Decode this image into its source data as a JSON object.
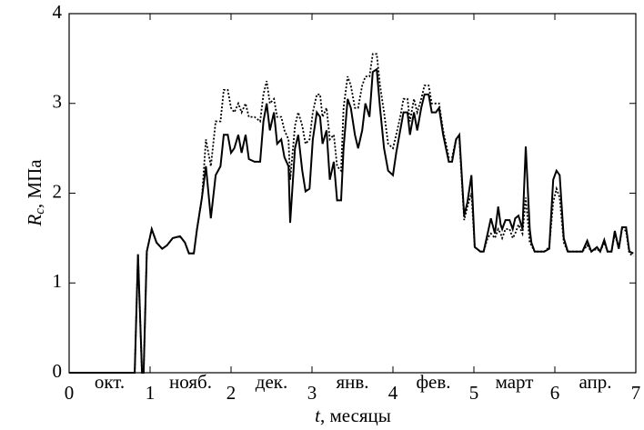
{
  "chart_data": {
    "type": "line",
    "y_label_symbol": "R",
    "y_label_subscript": "c",
    "y_label_rest": ", МПа",
    "x_label_symbol": "t",
    "x_label_rest": ", месяцы",
    "month_labels": [
      "окт.",
      "нояб.",
      "дек.",
      "янв.",
      "фев.",
      "март",
      "апр."
    ],
    "xlim": [
      0,
      7
    ],
    "xticks": [
      0,
      1,
      2,
      3,
      4,
      5,
      6,
      7
    ],
    "ylim": [
      0,
      4
    ],
    "yticks": [
      0,
      1,
      2,
      3,
      4
    ],
    "x": [
      0,
      0.81,
      0.85,
      0.9,
      0.92,
      0.96,
      1.02,
      1.08,
      1.15,
      1.21,
      1.28,
      1.37,
      1.43,
      1.48,
      1.54,
      1.58,
      1.64,
      1.69,
      1.75,
      1.81,
      1.87,
      1.91,
      1.96,
      2.0,
      2.04,
      2.09,
      2.13,
      2.18,
      2.22,
      2.29,
      2.36,
      2.4,
      2.44,
      2.48,
      2.53,
      2.57,
      2.62,
      2.66,
      2.71,
      2.73,
      2.79,
      2.83,
      2.88,
      2.92,
      2.97,
      3.01,
      3.06,
      3.1,
      3.13,
      3.18,
      3.22,
      3.27,
      3.31,
      3.36,
      3.39,
      3.44,
      3.48,
      3.53,
      3.57,
      3.62,
      3.66,
      3.71,
      3.75,
      3.8,
      3.84,
      3.89,
      3.94,
      4.0,
      4.04,
      4.09,
      4.13,
      4.18,
      4.21,
      4.26,
      4.3,
      4.35,
      4.39,
      4.44,
      4.48,
      4.53,
      4.57,
      4.62,
      4.69,
      4.73,
      4.78,
      4.82,
      4.88,
      4.92,
      4.97,
      5.01,
      5.08,
      5.12,
      5.17,
      5.21,
      5.26,
      5.3,
      5.33,
      5.35,
      5.39,
      5.44,
      5.48,
      5.51,
      5.55,
      5.6,
      5.64,
      5.69,
      5.71,
      5.75,
      5.82,
      5.87,
      5.93,
      5.98,
      6.02,
      6.06,
      6.11,
      6.16,
      6.22,
      6.34,
      6.4,
      6.45,
      6.52,
      6.56,
      6.61,
      6.65,
      6.7,
      6.74,
      6.79,
      6.83,
      6.88,
      6.92,
      6.97
    ],
    "series": [
      {
        "color": "#000000",
        "dash": "solid",
        "values": [
          0,
          0,
          1.32,
          0,
          0,
          1.35,
          1.6,
          1.45,
          1.38,
          1.42,
          1.5,
          1.52,
          1.45,
          1.33,
          1.33,
          1.6,
          1.95,
          2.3,
          1.72,
          2.2,
          2.3,
          2.65,
          2.65,
          2.45,
          2.5,
          2.65,
          2.45,
          2.65,
          2.38,
          2.35,
          2.35,
          2.8,
          3.0,
          2.7,
          2.9,
          2.55,
          2.6,
          2.4,
          2.3,
          1.67,
          2.5,
          2.65,
          2.25,
          2.02,
          2.05,
          2.6,
          2.9,
          2.85,
          2.55,
          2.7,
          2.15,
          2.35,
          1.92,
          1.92,
          2.5,
          3.05,
          2.95,
          2.65,
          2.5,
          2.7,
          3.0,
          2.85,
          3.35,
          3.38,
          2.95,
          2.5,
          2.25,
          2.2,
          2.45,
          2.7,
          2.9,
          2.9,
          2.65,
          2.9,
          2.7,
          2.95,
          3.1,
          3.1,
          2.9,
          2.9,
          2.95,
          2.65,
          2.35,
          2.35,
          2.6,
          2.65,
          1.75,
          1.9,
          2.2,
          1.4,
          1.35,
          1.35,
          1.55,
          1.72,
          1.55,
          1.85,
          1.65,
          1.6,
          1.7,
          1.7,
          1.6,
          1.72,
          1.75,
          1.6,
          2.52,
          1.6,
          1.45,
          1.35,
          1.35,
          1.35,
          1.38,
          2.15,
          2.25,
          2.2,
          1.5,
          1.35,
          1.35,
          1.35,
          1.47,
          1.35,
          1.4,
          1.35,
          1.48,
          1.35,
          1.35,
          1.58,
          1.38,
          1.62,
          1.62,
          1.35,
          1.33
        ]
      },
      {
        "color": "#000000",
        "dash": "dotted",
        "values": [
          0,
          0,
          1.32,
          0,
          0,
          1.35,
          1.6,
          1.45,
          1.38,
          1.42,
          1.5,
          1.52,
          1.45,
          1.33,
          1.33,
          1.6,
          1.95,
          2.6,
          2.3,
          2.8,
          2.8,
          3.15,
          3.15,
          2.95,
          2.9,
          3.0,
          2.9,
          3.0,
          2.85,
          2.85,
          2.8,
          3.1,
          3.25,
          3.0,
          3.05,
          2.85,
          2.85,
          2.7,
          2.6,
          2.15,
          2.75,
          2.9,
          2.75,
          2.55,
          2.6,
          2.9,
          3.1,
          3.1,
          2.85,
          2.95,
          2.6,
          2.65,
          2.3,
          2.25,
          2.95,
          3.3,
          3.2,
          2.95,
          2.95,
          3.2,
          3.3,
          3.3,
          3.55,
          3.55,
          3.2,
          2.9,
          2.55,
          2.5,
          2.65,
          2.85,
          3.05,
          3.05,
          2.8,
          3.05,
          2.9,
          3.05,
          3.2,
          3.2,
          3.0,
          3.0,
          3.0,
          2.7,
          2.4,
          2.4,
          2.6,
          2.6,
          1.7,
          1.85,
          2.0,
          1.4,
          1.35,
          1.35,
          1.5,
          1.55,
          1.5,
          1.6,
          1.55,
          1.5,
          1.6,
          1.6,
          1.5,
          1.55,
          1.65,
          1.55,
          1.95,
          1.45,
          1.42,
          1.35,
          1.35,
          1.35,
          1.4,
          1.9,
          2.05,
          1.95,
          1.45,
          1.35,
          1.35,
          1.35,
          1.42,
          1.35,
          1.38,
          1.35,
          1.45,
          1.35,
          1.35,
          1.55,
          1.38,
          1.6,
          1.58,
          1.33,
          1.3
        ]
      }
    ]
  }
}
